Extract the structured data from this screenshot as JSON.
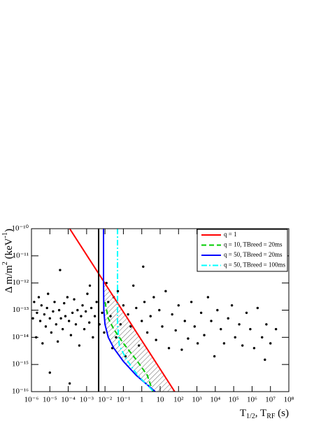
{
  "chart_data": {
    "type": "scatter",
    "log_x": true,
    "log_y": true,
    "xlim": [
      1e-06,
      100000000.0
    ],
    "ylim": [
      1e-16,
      1e-10
    ],
    "xticks": [
      {
        "value": 1e-06,
        "label": "10⁻⁶"
      },
      {
        "value": 1e-05,
        "label": "10⁻⁵"
      },
      {
        "value": 0.0001,
        "label": "10⁻⁴"
      },
      {
        "value": 0.001,
        "label": "10⁻³"
      },
      {
        "value": 0.01,
        "label": "10⁻²"
      },
      {
        "value": 0.1,
        "label": "10⁻¹"
      },
      1,
      10,
      {
        "value": 100,
        "label": "10²"
      },
      {
        "value": 1000,
        "label": "10³"
      },
      {
        "value": 10000.0,
        "label": "10⁴"
      },
      {
        "value": 100000.0,
        "label": "10⁵"
      },
      {
        "value": 1000000.0,
        "label": "10⁶"
      },
      {
        "value": 10000000.0,
        "label": "10⁷"
      },
      {
        "value": 100000000.0,
        "label": "10⁸"
      }
    ],
    "yticks": [
      {
        "value": 1e-16,
        "label": "10⁻¹⁶"
      },
      {
        "value": 1e-15,
        "label": "10⁻¹⁵"
      },
      {
        "value": 1e-14,
        "label": "10⁻¹⁴"
      },
      {
        "value": 1e-13,
        "label": "10⁻¹³"
      },
      {
        "value": 1e-12,
        "label": "10⁻¹²"
      },
      {
        "value": 1e-11,
        "label": "10⁻¹¹"
      },
      {
        "value": 1e-10,
        "label": "10⁻¹⁰"
      }
    ],
    "x_label": [
      "T",
      "1/2",
      ", T",
      "RF",
      " (s)"
    ],
    "y_label": [
      "Δ m/m",
      "2",
      " (keV",
      "-1",
      ")"
    ],
    "point_color": "#000000",
    "x": [
      1.2e-06,
      1.4e-06,
      1.8e-06,
      2e-06,
      2.5e-06,
      3e-06,
      3.5e-06,
      4e-06,
      5e-06,
      6e-06,
      7e-06,
      8e-06,
      1e-05,
      1.2e-05,
      1.5e-05,
      1.8e-05,
      2.2e-05,
      2.7e-05,
      3.2e-05,
      4e-05,
      5e-05,
      6e-05,
      7e-05,
      9e-05,
      0.00011,
      0.00014,
      0.00017,
      0.00021,
      0.00026,
      0.00032,
      0.0004,
      0.0005,
      0.0006,
      0.00075,
      0.0009,
      0.0011,
      0.0014,
      0.0018,
      0.0022,
      0.0028,
      0.0035,
      0.005,
      0.007,
      0.009,
      0.012,
      0.015,
      0.02,
      0.025,
      0.03,
      0.04,
      0.05,
      0.07,
      0.1,
      0.13,
      0.18,
      0.25,
      0.35,
      0.5,
      0.7,
      1,
      1.4,
      2,
      3,
      4.5,
      6,
      9,
      13,
      20,
      30,
      45,
      70,
      100,
      150,
      220,
      330,
      500,
      750,
      1100,
      1700,
      2500,
      4000,
      6000,
      9000,
      13000.0,
      20000.0,
      30000.0,
      50000.0,
      80000.0,
      120000.0,
      200000.0,
      300000.0,
      500000.0,
      800000.0,
      1300000.0,
      2000000.0,
      3500000.0,
      6000000.0,
      10000000.0,
      20000000.0,
      5000000.0,
      0.00012,
      1e-05,
      3.6e-05,
      1.2,
      0.0015
    ],
    "y": [
      5e-14,
      2e-13,
      1e-14,
      8e-14,
      3e-13,
      4e-14,
      1.5e-13,
      6e-15,
      7e-14,
      2.5e-14,
      1.2e-13,
      4e-13,
      5e-14,
      1.5e-14,
      9e-14,
      2e-13,
      3e-14,
      7e-15,
      1e-13,
      5e-14,
      2e-14,
      1.8e-13,
      6e-14,
      3e-13,
      4e-14,
      1.2e-14,
      8e-14,
      2.5e-13,
      3e-14,
      1e-13,
      5e-15,
      6e-14,
      1.5e-13,
      2e-14,
      9e-14,
      4e-13,
      3.5e-14,
      1.2e-13,
      1e-14,
      6e-14,
      2e-13,
      3e-14,
      8e-14,
      1.5e-14,
      1e-12,
      2e-13,
      6e-14,
      4e-15,
      3e-13,
      1e-14,
      5e-13,
      3e-14,
      1.5e-13,
      2e-15,
      7e-14,
      2.5e-14,
      8e-13,
      1.2e-13,
      5e-15,
      4e-14,
      2e-13,
      1.5e-14,
      6e-14,
      3e-13,
      8e-15,
      1e-13,
      2.5e-14,
      5e-13,
      4e-15,
      7e-14,
      1.8e-14,
      1.5e-13,
      3.5e-15,
      4e-14,
      9e-15,
      2e-13,
      2.5e-14,
      6e-15,
      8e-14,
      1.2e-14,
      3e-13,
      4e-14,
      2e-15,
      1e-13,
      2e-14,
      6e-15,
      5e-14,
      1.5e-13,
      1e-14,
      3e-14,
      5e-15,
      8e-14,
      2e-14,
      4e-15,
      1.2e-13,
      1e-14,
      3e-14,
      6e-15,
      2e-14,
      1.5e-15,
      2e-16,
      5e-16,
      3e-12,
      4e-12,
      8e-13
    ],
    "lines": [
      {
        "name": "q = 1",
        "color": "#ff0000",
        "style": "solid",
        "x": [
          0.00012,
          62
        ],
        "y": [
          1e-10,
          1e-16
        ]
      },
      {
        "name": "q = 10, TBreed = 20ms",
        "color": "#00cc00",
        "style": "dashed",
        "x": [
          0.01,
          0.015,
          0.03,
          0.1,
          0.5,
          2,
          4
        ],
        "y": [
          2e-13,
          5e-14,
          2e-14,
          6e-15,
          1.5e-15,
          4e-16,
          1e-16
        ]
      },
      {
        "name": "q = 50, TBreed = 20ms",
        "color": "#0000ff",
        "style": "solid",
        "x": [
          0.0083,
          0.0083,
          0.0086,
          0.01,
          0.015,
          0.03,
          0.1,
          0.5,
          5.4
        ],
        "y": [
          1e-10,
          1e-12,
          1e-13,
          3e-14,
          1e-14,
          4e-15,
          1.3e-15,
          4e-16,
          1e-16
        ]
      },
      {
        "name": "q = 50, TBreed = 100ms",
        "color": "#00ffff",
        "style": "dashdot",
        "x": [
          0.048,
          0.048,
          0.06,
          0.15,
          0.6,
          4.5
        ],
        "y": [
          1e-10,
          3e-14,
          5e-15,
          1.5e-15,
          4e-16,
          1e-16
        ]
      },
      {
        "color": "#000000",
        "style": "solid",
        "x": [
          0.0045,
          0.0045
        ],
        "y": [
          1e-10,
          1e-16
        ]
      }
    ],
    "hatch_between": [
      2,
      0
    ],
    "legend": "top-right"
  }
}
